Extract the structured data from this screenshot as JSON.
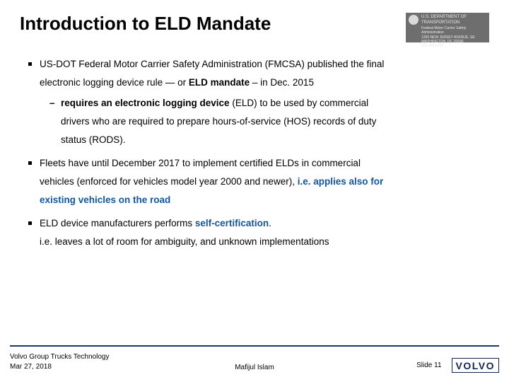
{
  "header": {
    "title": "Introduction to ELD Mandate",
    "badge": {
      "line1": "U.S. DEPARTMENT OF TRANSPORTATION",
      "line2": "Federal Motor Carrier Safety Administration",
      "line3": "1200 NEW JERSEY AVENUE, SE",
      "line4": "WASHINGTON, DC 20590",
      "line5": "855-368-4200"
    }
  },
  "bullets": {
    "b1": {
      "t1": "US-DOT Federal Motor Carrier Safety Administration (FMCSA) published the final",
      "t2a": "electronic logging device rule — or ",
      "t2b": "ELD mandate",
      "t2c": " – in Dec. 2015"
    },
    "b1sub": {
      "s1a": "requires an electronic logging device",
      "s1b": " (ELD) to be used by commercial",
      "s2": "drivers who are required to prepare hours-of-service (HOS) records of duty",
      "s3": "status (RODS)."
    },
    "b2": {
      "t1": "Fleets have until December 2017 to implement certified ELDs in commercial",
      "t2a": "vehicles (enforced for vehicles model year 2000 and newer), ",
      "t2b": "i.e. applies also for",
      "t3": "existing vehicles on the road"
    },
    "b3": {
      "t1a": "ELD device manufacturers performs ",
      "t1b": "self-certification",
      "t1c": ".",
      "t2": "i.e. leaves a lot of room for ambiguity, and unknown implementations"
    }
  },
  "footer": {
    "org": "Volvo Group Trucks Technology",
    "date": "Mar 27, 2018",
    "author": "Mafijul Islam",
    "slide": "Slide 11",
    "logo": "VOLVO"
  },
  "colors": {
    "accent_blue": "#1256a0",
    "footer_line": "#173a6a",
    "badge_bg": "#6e6e6e",
    "logo_color": "#14254f"
  }
}
